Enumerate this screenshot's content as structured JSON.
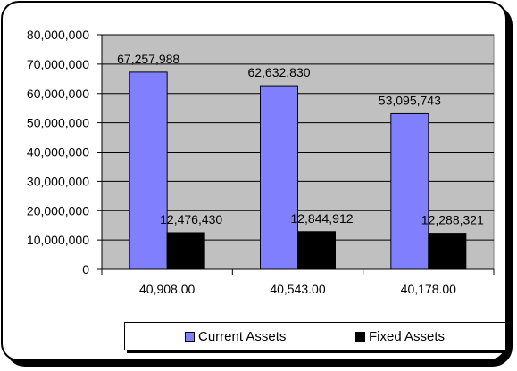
{
  "chart_data": {
    "type": "bar",
    "categories": [
      "40,908.00",
      "40,543.00",
      "40,178.00"
    ],
    "series": [
      {
        "name": "Current Assets",
        "values": [
          67257988,
          62632830,
          53095743
        ],
        "labels": [
          "67,257,988",
          "62,632,830",
          "53,095,743"
        ],
        "color": "#8080ff"
      },
      {
        "name": "Fixed Assets",
        "values": [
          12476430,
          12844912,
          12288321
        ],
        "labels": [
          "12,476,430",
          "12,844,912",
          "12,288,321"
        ],
        "color": "#000000"
      }
    ],
    "ylim": [
      0,
      80000000
    ],
    "yticks": [
      0,
      10000000,
      20000000,
      30000000,
      40000000,
      50000000,
      60000000,
      70000000,
      80000000
    ],
    "ytick_labels": [
      "0",
      "10,000,000",
      "20,000,000",
      "30,000,000",
      "40,000,000",
      "50,000,000",
      "60,000,000",
      "70,000,000",
      "80,000,000"
    ],
    "grid": true,
    "legend_position": "bottom-right",
    "colors": {
      "plot_background": "#c0c0c0",
      "gridline": "#000000"
    }
  }
}
